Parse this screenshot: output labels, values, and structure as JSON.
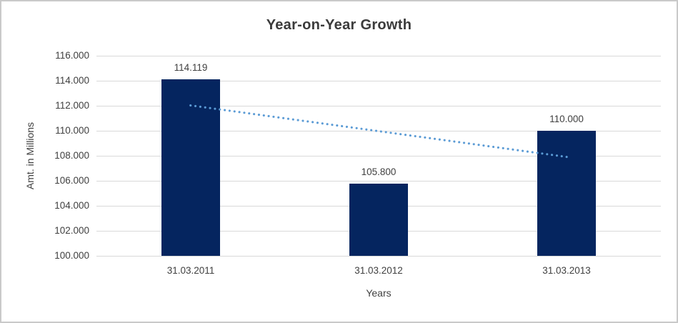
{
  "window": {
    "background_color": "#ffffff",
    "border_color": "#c9c9c9"
  },
  "chart_data": {
    "type": "bar",
    "title": "Year-on-Year Growth",
    "xlabel": "Years",
    "ylabel": "Amt. in Millions",
    "categories": [
      "31.03.2011",
      "31.03.2012",
      "31.03.2013"
    ],
    "values": [
      114.119,
      105.8,
      110.0
    ],
    "value_labels": [
      "114.119",
      "105.800",
      "110.000"
    ],
    "ylim": [
      100,
      116
    ],
    "ytick_step": 2,
    "ytick_labels": [
      "116.000",
      "114.000",
      "112.000",
      "110.000",
      "108.000",
      "106.000",
      "104.000",
      "102.000",
      "100.000"
    ],
    "grid": true,
    "legend": "none",
    "bar_color": "#05255f",
    "gridline_color": "#d9d9d9",
    "text_color": "#404040",
    "title_color": "#3b3b3b",
    "trendline": {
      "type": "linear",
      "style": "dotted",
      "color": "#5b9bd5",
      "start_value": 112.03,
      "end_value": 107.91
    }
  }
}
